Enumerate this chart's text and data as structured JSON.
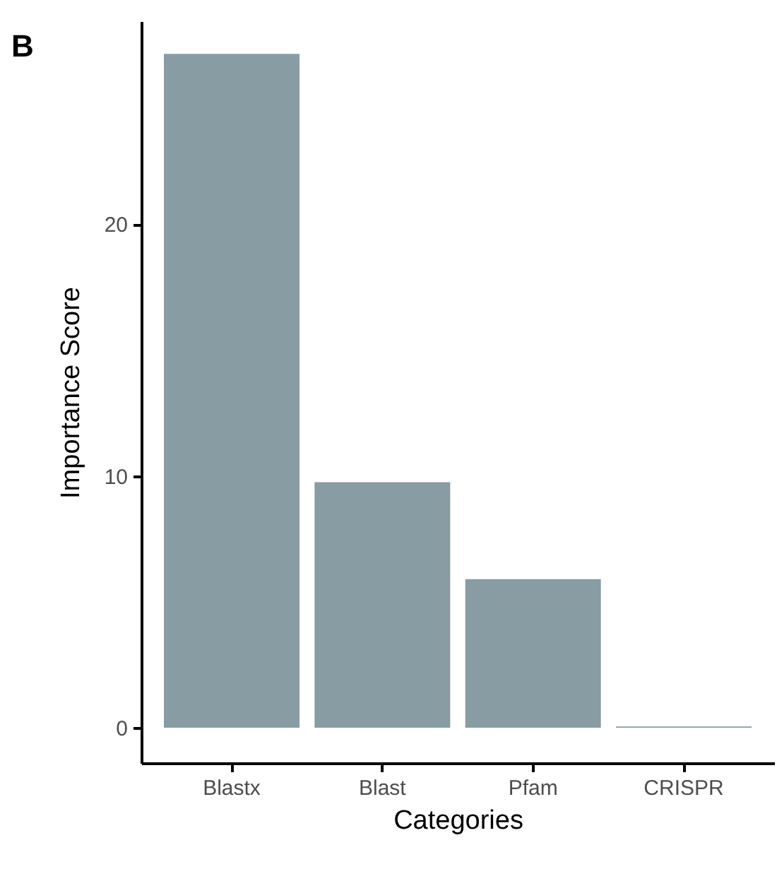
{
  "chart_data": {
    "type": "bar",
    "title": "B",
    "xlabel": "Categories",
    "ylabel": "Importance Score",
    "categories": [
      "Blastx",
      "Blast",
      "Pfam",
      "CRISPR"
    ],
    "values": [
      26.75,
      9.75,
      5.9,
      0.05
    ],
    "color": "#889ca3",
    "ylim": [
      -1.4,
      28.05
    ],
    "yticks": [
      0,
      10,
      20
    ],
    "grid": false
  }
}
